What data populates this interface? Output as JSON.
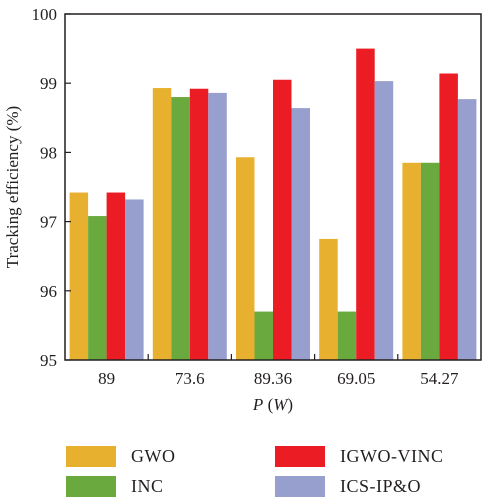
{
  "chart_data": {
    "type": "bar",
    "xlabel_var": "P",
    "xlabel_unit": "(W)",
    "ylabel": "Tracking efficiency (%)",
    "ylim": [
      95,
      100
    ],
    "yticks": [
      95,
      96,
      97,
      98,
      99,
      100
    ],
    "categories": [
      "89",
      "73.6",
      "89.36",
      "69.05",
      "54.27"
    ],
    "series": [
      {
        "name": "GWO",
        "color": "#e7b12f",
        "values": [
          97.42,
          98.93,
          97.93,
          96.75,
          97.85
        ]
      },
      {
        "name": "INC",
        "color": "#6aa93d",
        "values": [
          97.08,
          98.8,
          95.7,
          95.7,
          97.85
        ]
      },
      {
        "name": "IGWO-VINC",
        "color": "#ec1c24",
        "values": [
          97.42,
          98.92,
          99.05,
          99.5,
          99.14
        ]
      },
      {
        "name": "ICS-IP&O",
        "color": "#979fcf",
        "values": [
          97.32,
          98.86,
          98.64,
          99.03,
          98.77
        ]
      }
    ],
    "grid": false,
    "legend_position": "bottom"
  }
}
